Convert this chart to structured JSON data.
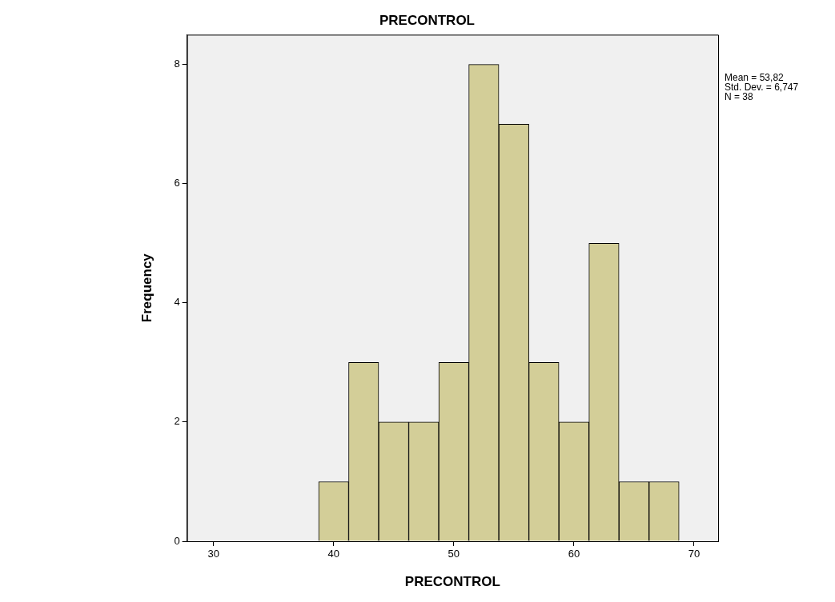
{
  "chart_data": {
    "type": "histogram",
    "title": "PRECONTROL",
    "xlabel": "PRECONTROL",
    "ylabel": "Frequency",
    "bins": [
      38.75,
      41.25,
      43.75,
      46.25,
      48.75,
      51.25,
      53.75,
      56.25,
      58.75,
      61.25,
      63.75,
      66.25,
      68.75
    ],
    "values": [
      1,
      3,
      2,
      2,
      3,
      8,
      7,
      3,
      2,
      5,
      1,
      1
    ],
    "color": "#d3ce98",
    "xlim": [
      27.8,
      72
    ],
    "xticks": [
      30,
      40,
      50,
      60,
      70
    ],
    "ylim": [
      0,
      8.5
    ],
    "yticks": [
      0,
      2,
      4,
      6,
      8
    ],
    "grid": false,
    "legend": false,
    "annotations": [
      "Mean = 53,82",
      "Std. Dev. = 6,747",
      "N = 38"
    ]
  }
}
